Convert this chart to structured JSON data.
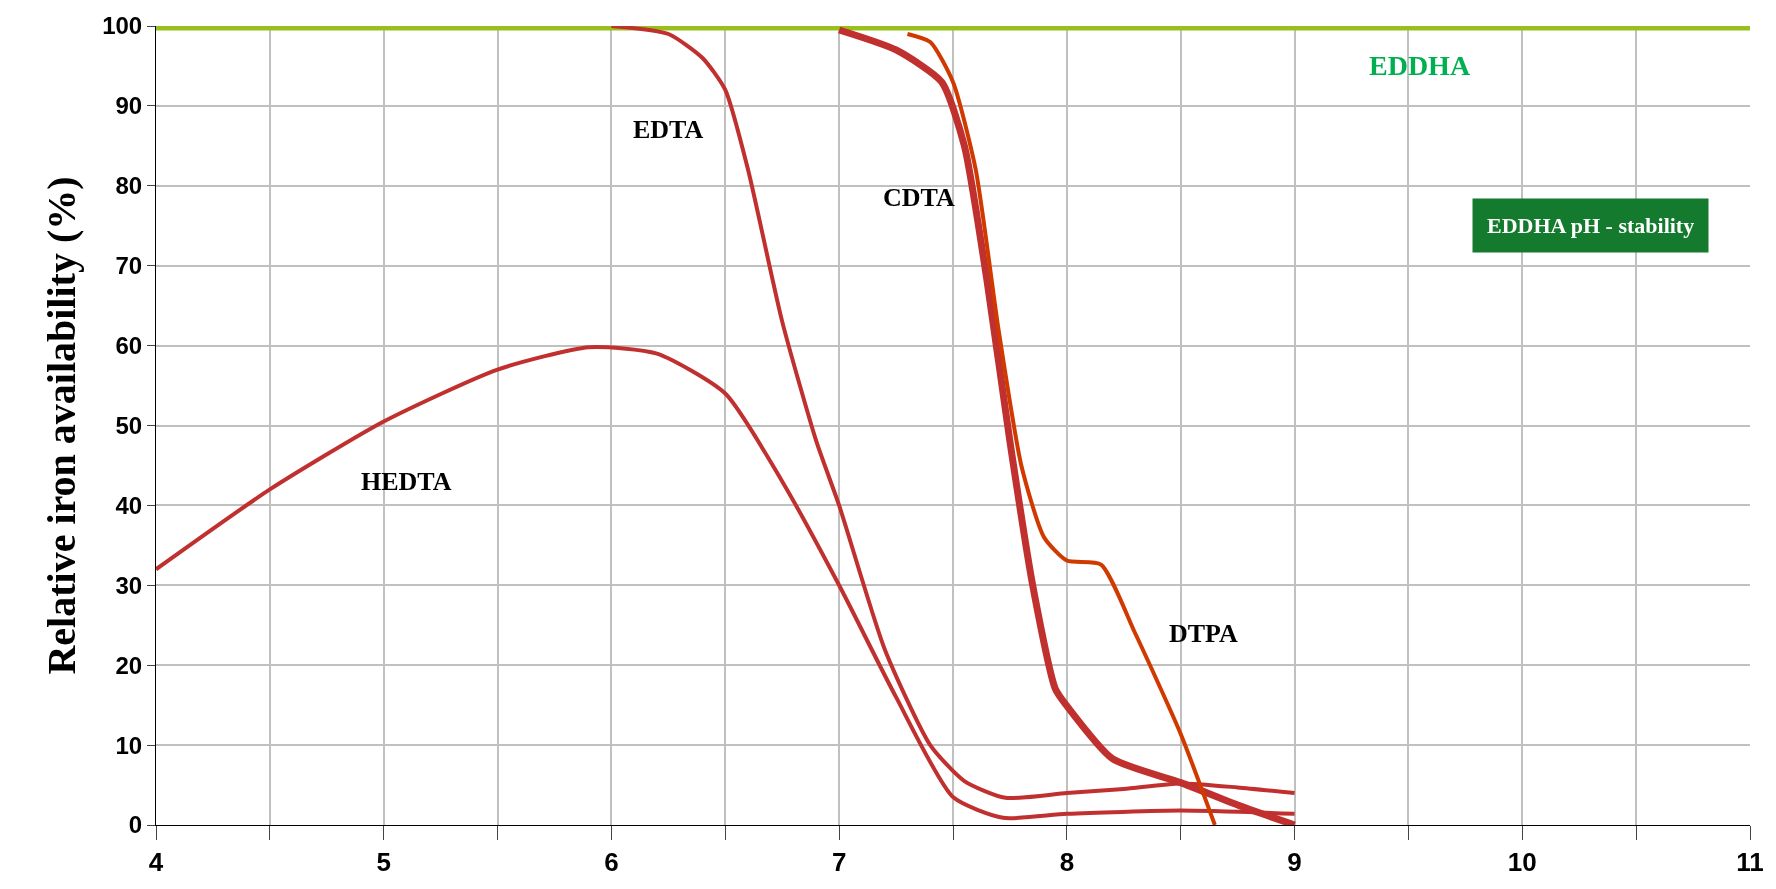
{
  "chart_data": {
    "type": "line",
    "ylabel": "Relative iron availability (%)",
    "xlim": [
      4,
      11
    ],
    "ylim": [
      0,
      100
    ],
    "xticks": [
      4,
      {
        "value": 4.5,
        "label": null
      },
      5,
      {
        "value": 5.5,
        "label": null
      },
      6,
      {
        "value": 6.5,
        "label": null
      },
      7,
      {
        "value": 7.5,
        "label": null
      },
      8,
      {
        "value": 8.5,
        "label": null
      },
      9,
      {
        "value": 9.5,
        "label": null
      },
      10,
      {
        "value": 10.5,
        "label": null
      },
      11
    ],
    "yticks": [
      0,
      10,
      20,
      30,
      40,
      50,
      60,
      70,
      80,
      90,
      100
    ],
    "grid": true,
    "legend": false,
    "marker": "none",
    "line_style": "solid",
    "series": [
      {
        "name": "EDDHA",
        "color": "#97c11a",
        "x": [
          4,
          11
        ],
        "values": [
          100,
          100
        ]
      },
      {
        "name": "EDTA",
        "color": "#c0302f",
        "x": [
          6,
          6.25,
          6.4,
          6.5,
          6.6,
          6.75,
          6.9,
          7,
          7.2,
          7.4,
          7.55,
          7.73,
          8,
          8.25,
          8.5,
          8.75,
          9
        ],
        "values": [
          100,
          99,
          96,
          92,
          82,
          63,
          48,
          40,
          22,
          10,
          5.5,
          3.4,
          4,
          4.5,
          5.2,
          4.7,
          4
        ]
      },
      {
        "name": "HEDTA",
        "color": "#c0302f",
        "x": [
          4,
          4.5,
          5,
          5.5,
          5.9,
          6.2,
          6.5,
          6.75,
          7,
          7.25,
          7.5,
          7.72,
          8,
          8.5,
          9
        ],
        "values": [
          32,
          42,
          50.5,
          57,
          59.8,
          59,
          54,
          43,
          30,
          16,
          3.5,
          0.9,
          1.4,
          1.8,
          1.4
        ]
      },
      {
        "name": "CDTA",
        "color": "#c0302f",
        "x": [
          7,
          7.25,
          7.45,
          7.55,
          7.65,
          7.75,
          7.85,
          7.95,
          8,
          8.2,
          8.5,
          8.75,
          9
        ],
        "values": [
          99.5,
          97,
          93,
          85,
          68,
          48,
          30,
          17,
          14.9,
          8.3,
          5.3,
          2.5,
          0
        ]
      },
      {
        "name": "DTPA",
        "color": "#d03a00",
        "x": [
          7.3,
          7.4,
          7.5,
          7.6,
          7.7,
          7.8,
          7.9,
          8,
          8.15,
          8.3,
          8.5,
          8.65
        ],
        "values": [
          99,
          98,
          93,
          82,
          62,
          45,
          36,
          33.1,
          32.6,
          24,
          11.4,
          0
        ]
      }
    ],
    "annotations": [
      "EDDHA pH - stability"
    ]
  }
}
